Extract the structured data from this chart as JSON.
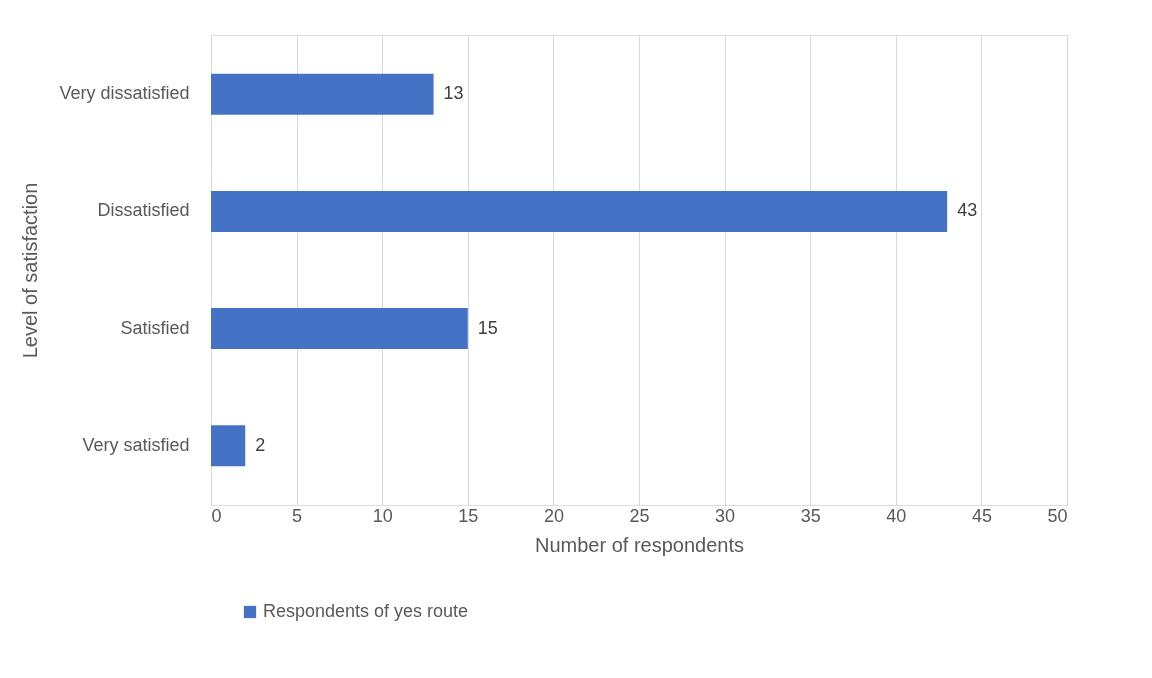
{
  "chart_data": {
    "type": "bar",
    "orientation": "horizontal",
    "xlabel": "Number of respondents",
    "ylabel": "Level of satisfaction",
    "categories": [
      "Very dissatisfied",
      "Dissatisfied",
      "Satisfied",
      "Very satisfied"
    ],
    "series": [
      {
        "name": "Respondents of yes route",
        "color": "#4472c4",
        "values": [
          13,
          43,
          15,
          2
        ]
      }
    ],
    "xlim": [
      0,
      50
    ],
    "xticks": [
      0,
      5,
      10,
      15,
      20,
      25,
      30,
      35,
      40,
      45,
      50
    ],
    "grid": "x",
    "legend": "bottom",
    "data_labels": true
  }
}
